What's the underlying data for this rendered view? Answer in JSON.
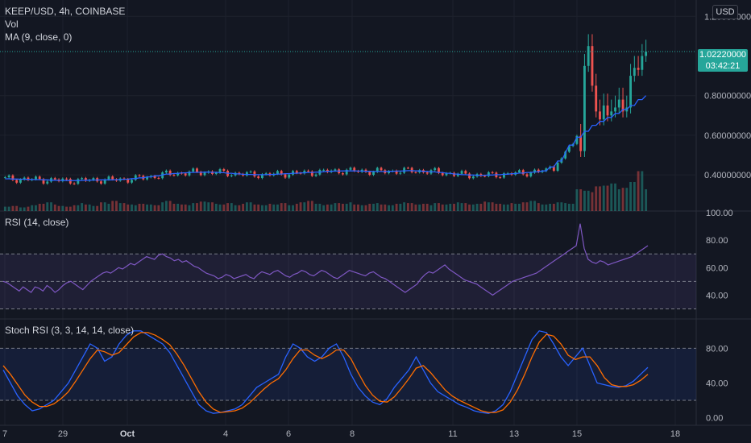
{
  "header": {
    "symbol_line": "KEEP/USD, 4h, COINBASE",
    "volume_label": "Vol",
    "ma_label": "MA (9, close, 0)",
    "currency_button": "USD"
  },
  "rsi_panel": {
    "label": "RSI (14, close)"
  },
  "stoch_panel": {
    "label": "Stoch RSI (3, 3, 14, 14, close)"
  },
  "last_price": {
    "value": "1.02220000",
    "countdown": "03:42:21"
  },
  "colors": {
    "background": "#131722",
    "up": "#26a69a",
    "down": "#ef5350",
    "ma": "#2962ff",
    "rsi": "#7e57c2",
    "stoch_k": "#2962ff",
    "stoch_d": "#ff6d00",
    "grid": "#1e222d",
    "axis_text": "#b2b5be"
  },
  "chart_data": [
    {
      "type": "candlestick",
      "title": "KEEP/USD, 4h, COINBASE",
      "y_ticks": [
        "1.20000000",
        "0.80000000",
        "0.60000000",
        "0.40000000"
      ],
      "ylim": [
        0.25,
        1.25
      ],
      "x_ticks": [
        "7",
        "29",
        "Oct",
        "4",
        "6",
        "8",
        "11",
        "13",
        "15",
        "18"
      ],
      "annotations": [
        "1.02220000",
        "03:42:21"
      ],
      "series": [
        {
          "name": "Vol",
          "kind": "volume_bars",
          "description_values": [
            6,
            7,
            5,
            6,
            8,
            10,
            12,
            9,
            7,
            6,
            8,
            11,
            9,
            7,
            12,
            10,
            14,
            11,
            9,
            8,
            10,
            9,
            8,
            12,
            14,
            10,
            9,
            8,
            11,
            13,
            12,
            10,
            9,
            11,
            8,
            10,
            12,
            9,
            8,
            10,
            9,
            11,
            8,
            10,
            12,
            14,
            10,
            8,
            9,
            11,
            10,
            12,
            9,
            8,
            10,
            11,
            9,
            8,
            10,
            12,
            11,
            9,
            10,
            8,
            11,
            9,
            10,
            12,
            11,
            9,
            10,
            13,
            12,
            10,
            9,
            11,
            10,
            12,
            14,
            11,
            9,
            10,
            12,
            11,
            10,
            30,
            28,
            26,
            34,
            35,
            38,
            30,
            32,
            40,
            55,
            30
          ]
        },
        {
          "name": "MA (9, close, 0)",
          "kind": "line",
          "values": [
            0.38,
            0.379,
            0.378,
            0.377,
            0.376,
            0.375,
            0.373,
            0.372,
            0.371,
            0.371,
            0.372,
            0.373,
            0.374,
            0.375,
            0.375,
            0.376,
            0.378,
            0.381,
            0.385,
            0.39,
            0.395,
            0.4,
            0.404,
            0.407,
            0.41,
            0.412,
            0.413,
            0.414,
            0.413,
            0.411,
            0.408,
            0.405,
            0.403,
            0.402,
            0.401,
            0.401,
            0.402,
            0.404,
            0.406,
            0.408,
            0.41,
            0.412,
            0.414,
            0.416,
            0.418,
            0.419,
            0.42,
            0.42,
            0.419,
            0.418,
            0.417,
            0.417,
            0.418,
            0.419,
            0.42,
            0.421,
            0.42,
            0.418,
            0.415,
            0.412,
            0.408,
            0.404,
            0.401,
            0.399,
            0.398,
            0.398,
            0.399,
            0.401,
            0.403,
            0.406,
            0.409,
            0.412,
            0.415,
            0.42,
            0.44,
            0.47,
            0.51,
            0.55,
            0.59,
            0.62,
            0.65,
            0.67,
            0.69,
            0.71,
            0.73,
            0.75,
            0.78,
            0.8
          ]
        }
      ]
    },
    {
      "type": "line",
      "title": "RSI (14, close)",
      "y_ticks": [
        "100.00",
        "80.00",
        "60.00",
        "40.00"
      ],
      "ylim": [
        25,
        100
      ],
      "bands": [
        30,
        50,
        70
      ],
      "series": [
        {
          "name": "RSI (14, close)",
          "values": [
            50,
            49,
            47,
            45,
            43,
            46,
            44,
            42,
            46,
            45,
            43,
            47,
            45,
            42,
            44,
            47,
            49,
            50,
            48,
            46,
            44,
            47,
            50,
            52,
            54,
            56,
            57,
            56,
            58,
            60,
            59,
            61,
            63,
            62,
            64,
            66,
            68,
            67,
            66,
            69,
            70,
            68,
            67,
            65,
            66,
            64,
            65,
            63,
            61,
            60,
            58,
            56,
            55,
            54,
            52,
            53,
            55,
            54,
            52,
            53,
            54,
            55,
            53,
            52,
            55,
            57,
            56,
            55,
            57,
            58,
            56,
            54,
            53,
            55,
            56,
            58,
            57,
            55,
            54,
            56,
            58,
            57,
            55,
            53,
            52,
            54,
            56,
            58,
            57,
            56,
            55,
            54,
            56,
            57,
            55,
            53,
            52,
            50,
            48,
            46,
            44,
            42,
            44,
            46,
            48,
            52,
            55,
            57,
            56,
            58,
            60,
            62,
            59,
            57,
            55,
            53,
            51,
            50,
            49,
            48,
            46,
            44,
            42,
            40,
            42,
            44,
            46,
            48,
            50,
            51,
            52,
            53,
            54,
            55,
            56,
            58,
            60,
            62,
            64,
            66,
            68,
            70,
            72,
            74,
            76,
            92,
            74,
            66,
            64,
            63,
            65,
            64,
            62,
            63,
            64,
            65,
            66,
            67,
            68,
            70,
            72,
            74,
            76
          ]
        }
      ]
    },
    {
      "type": "line",
      "title": "Stoch RSI (3, 3, 14, 14, close)",
      "y_ticks": [
        "80.00",
        "40.00",
        "0.00"
      ],
      "ylim": [
        -5,
        110
      ],
      "bands": [
        20,
        80
      ],
      "series": [
        {
          "name": "%K",
          "values": [
            55,
            40,
            25,
            15,
            8,
            10,
            15,
            20,
            30,
            40,
            55,
            70,
            85,
            80,
            65,
            70,
            85,
            95,
            100,
            100,
            95,
            90,
            85,
            75,
            60,
            45,
            30,
            15,
            8,
            5,
            6,
            8,
            10,
            15,
            25,
            35,
            40,
            45,
            50,
            70,
            85,
            80,
            70,
            65,
            70,
            80,
            85,
            70,
            50,
            35,
            25,
            18,
            15,
            22,
            35,
            45,
            55,
            70,
            55,
            40,
            30,
            25,
            20,
            15,
            12,
            8,
            6,
            5,
            8,
            15,
            30,
            50,
            70,
            90,
            100,
            98,
            85,
            70,
            60,
            70,
            80,
            60,
            40,
            38,
            36,
            35,
            37,
            42,
            50,
            58
          ]
        },
        {
          "name": "%D",
          "values": [
            60,
            50,
            38,
            26,
            18,
            13,
            13,
            16,
            22,
            30,
            42,
            55,
            68,
            78,
            76,
            72,
            75,
            84,
            93,
            98,
            98,
            95,
            90,
            84,
            73,
            60,
            45,
            30,
            18,
            10,
            6,
            7,
            8,
            11,
            17,
            25,
            33,
            40,
            45,
            55,
            68,
            78,
            78,
            72,
            68,
            72,
            78,
            78,
            68,
            52,
            37,
            26,
            19,
            18,
            24,
            34,
            45,
            57,
            60,
            52,
            42,
            32,
            25,
            20,
            16,
            12,
            8,
            6,
            6,
            9,
            18,
            32,
            50,
            70,
            87,
            96,
            94,
            85,
            72,
            67,
            70,
            70,
            60,
            46,
            38,
            36,
            36,
            38,
            43,
            50
          ]
        }
      ]
    }
  ]
}
